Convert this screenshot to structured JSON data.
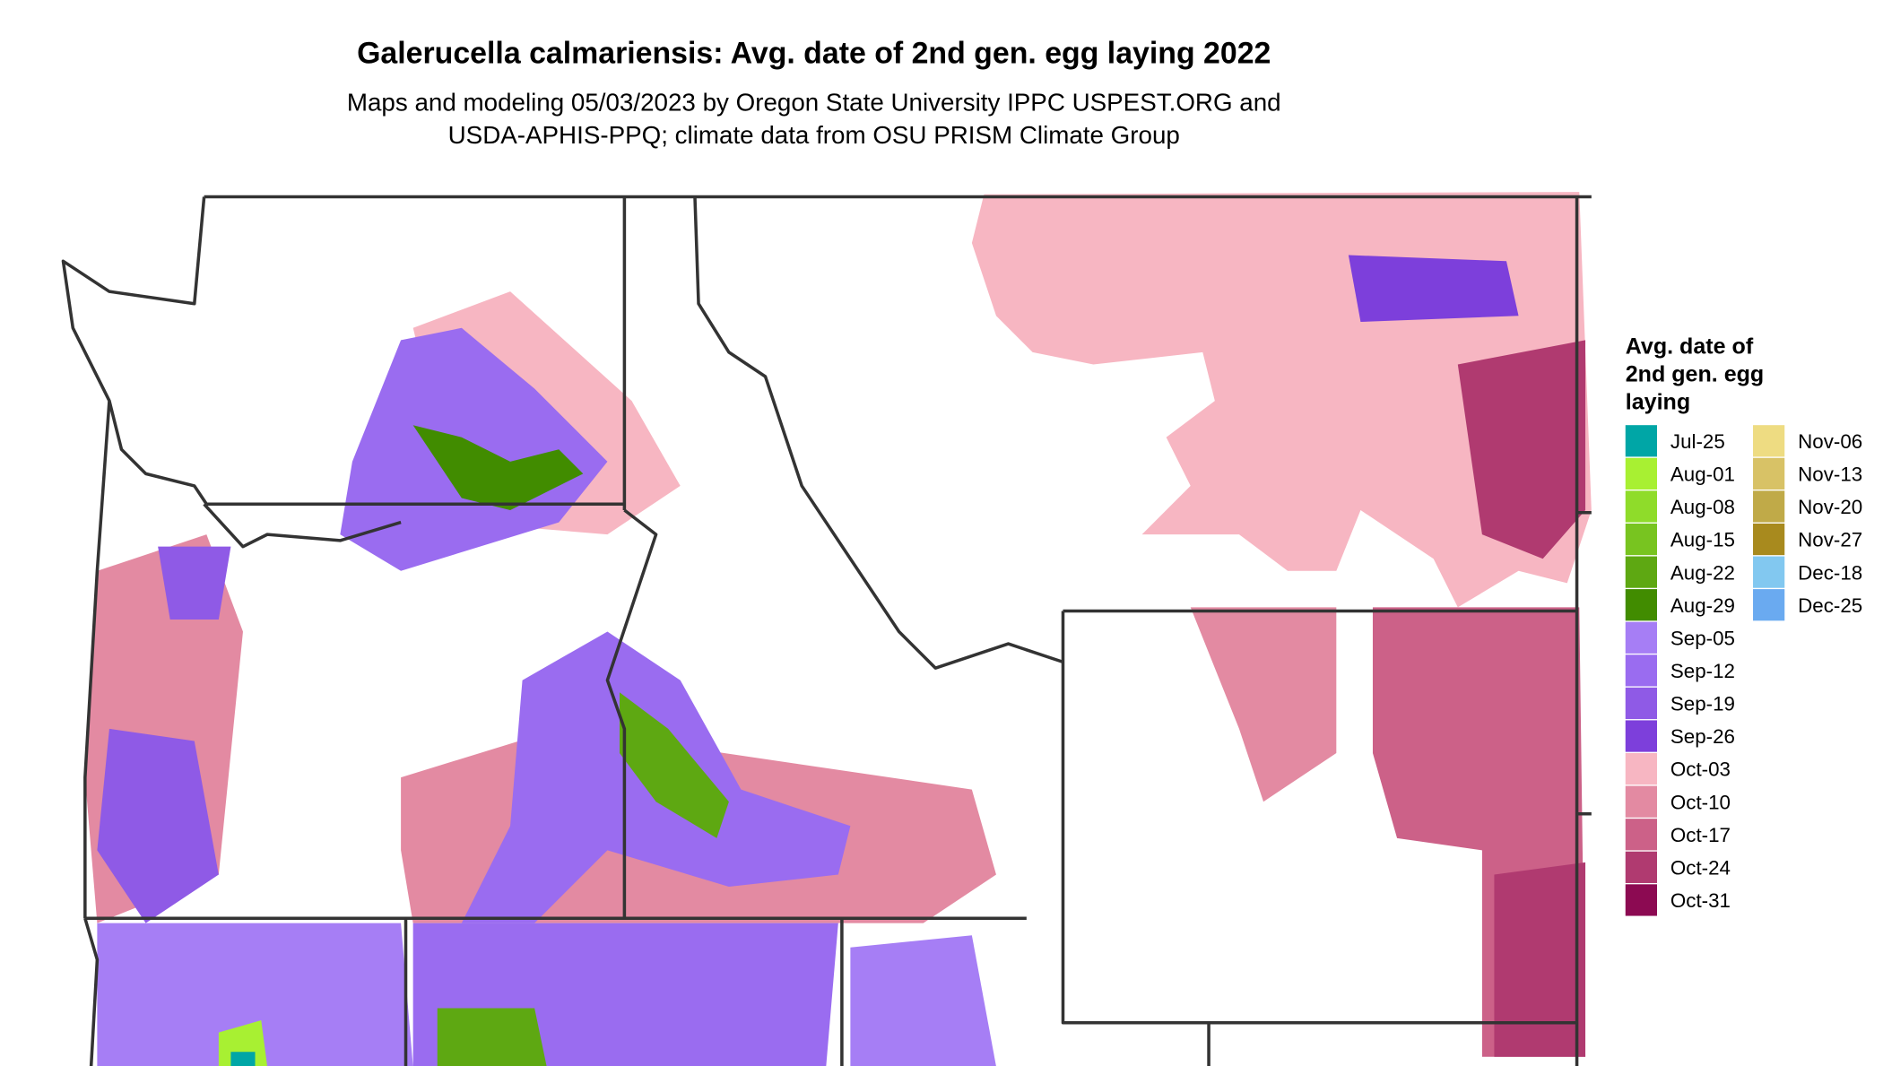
{
  "title": "Galerucella calmariensis: Avg. date of 2nd gen. egg laying 2022",
  "subtitle": [
    "Maps and modeling 05/03/2023 by Oregon State University IPPC USPEST.ORG and",
    "USDA-APHIS-PPQ; climate data from OSU PRISM Climate Group"
  ],
  "legend": {
    "title": [
      "Avg. date of",
      "2nd gen. egg",
      "laying"
    ],
    "columns": [
      [
        {
          "label": "Jul-25",
          "color": "#00a6a6"
        },
        {
          "label": "Aug-01",
          "color": "#a8f032"
        },
        {
          "label": "Aug-08",
          "color": "#8fdc2a"
        },
        {
          "label": "Aug-15",
          "color": "#78c420"
        },
        {
          "label": "Aug-22",
          "color": "#5ea812"
        },
        {
          "label": "Aug-29",
          "color": "#418c00"
        },
        {
          "label": "Sep-05",
          "color": "#a67ef5"
        },
        {
          "label": "Sep-12",
          "color": "#9a6cf0"
        },
        {
          "label": "Sep-19",
          "color": "#8f5ae6"
        },
        {
          "label": "Sep-26",
          "color": "#7d3fdb"
        },
        {
          "label": "Oct-03",
          "color": "#f7b6c2"
        },
        {
          "label": "Oct-10",
          "color": "#e38aa2"
        },
        {
          "label": "Oct-17",
          "color": "#cc6188"
        },
        {
          "label": "Oct-24",
          "color": "#b03a70"
        },
        {
          "label": "Oct-31",
          "color": "#8c0a52"
        }
      ],
      [
        {
          "label": "Nov-06",
          "color": "#eedc82"
        },
        {
          "label": "Nov-13",
          "color": "#d8c266"
        },
        {
          "label": "Nov-20",
          "color": "#c0aa48"
        },
        {
          "label": "Nov-27",
          "color": "#a88a1e"
        },
        {
          "label": "Dec-18",
          "color": "#82c8f0"
        },
        {
          "label": "Dec-25",
          "color": "#6aaaf0"
        }
      ]
    ]
  }
}
